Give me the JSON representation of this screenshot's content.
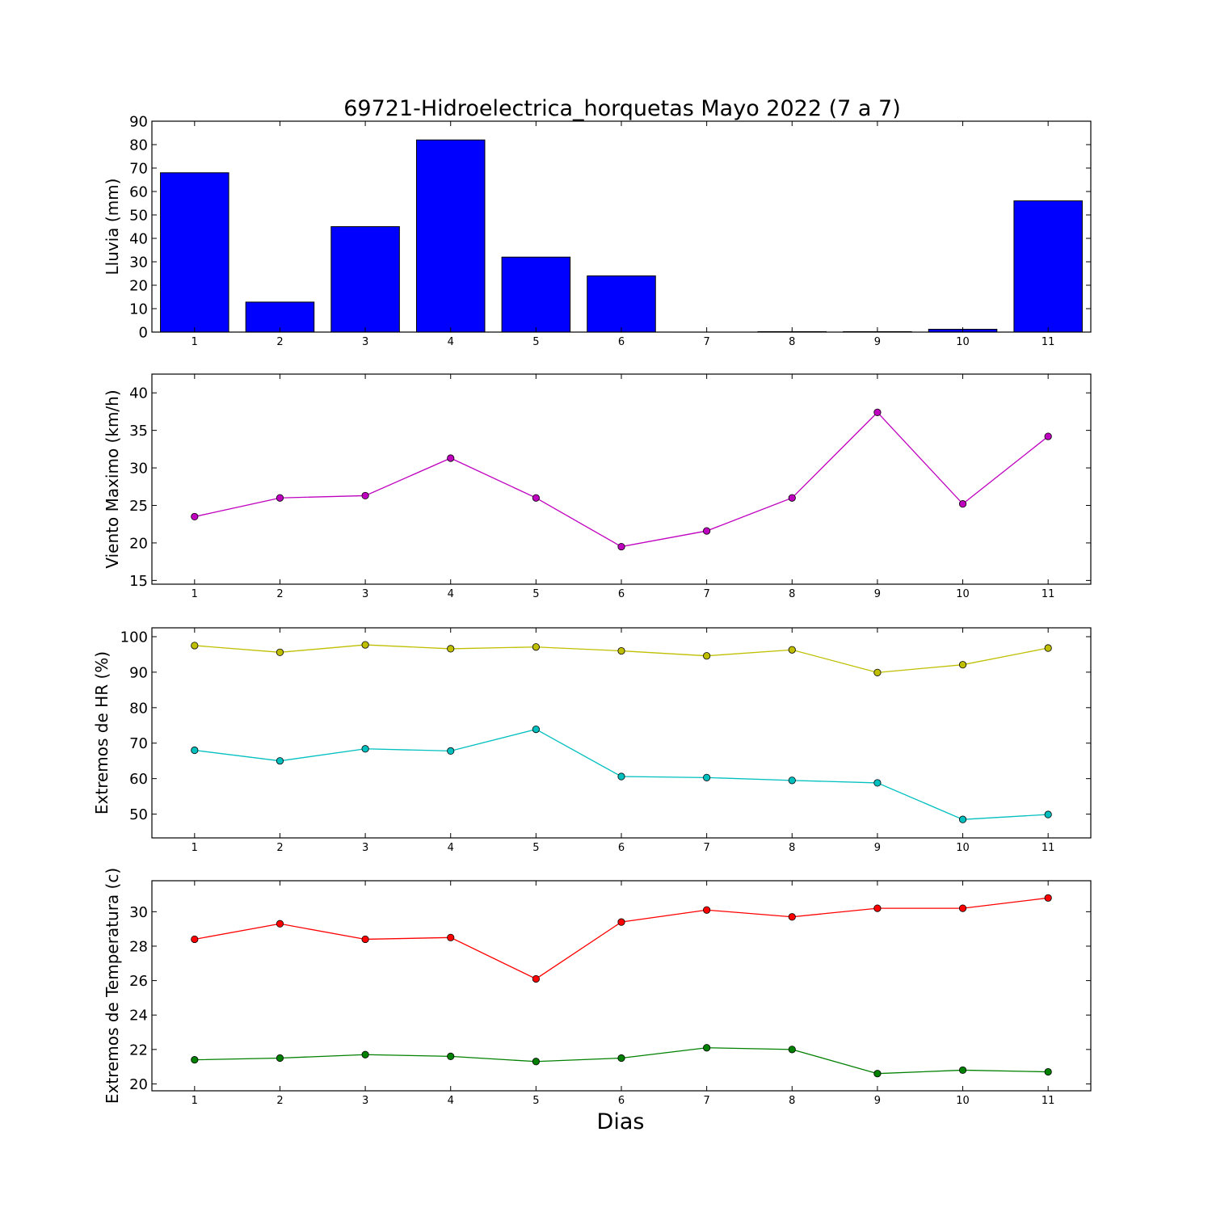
{
  "chart_data": {
    "title": "69721-Hidroelectrica_horquetas Mayo 2022  (7 a 7)",
    "xlabel": "Dias",
    "x": [
      1,
      2,
      3,
      4,
      5,
      6,
      7,
      8,
      9,
      10,
      11
    ],
    "panels": [
      {
        "id": "lluvia",
        "type": "bar",
        "ylabel": "Lluvia (mm)",
        "ylim": [
          0,
          90
        ],
        "yticks": [
          0,
          10,
          20,
          30,
          40,
          50,
          60,
          70,
          80,
          90
        ],
        "series": [
          {
            "color": "#0000ff",
            "values": [
              68,
              12.8,
              45,
              82,
              32,
              24,
              0,
              0.2,
              0.2,
              1.2,
              56
            ]
          }
        ]
      },
      {
        "id": "viento",
        "type": "line",
        "ylabel": "Viento Maximo (km/h)",
        "ylim": [
          14.5,
          42.5
        ],
        "yticks": [
          15,
          20,
          25,
          30,
          35,
          40
        ],
        "series": [
          {
            "color": "#bf00bf",
            "values": [
              23.5,
              26,
              26.3,
              31.3,
              26,
              19.5,
              21.6,
              26,
              37.4,
              25.2,
              34.2
            ]
          }
        ]
      },
      {
        "id": "hr",
        "type": "line",
        "ylabel": "Extremos de HR (%)",
        "ylim": [
          43.3,
          102.5
        ],
        "yticks": [
          50,
          60,
          70,
          80,
          90,
          100
        ],
        "series": [
          {
            "color": "#bfbf00",
            "values": [
              97.5,
              95.6,
              97.7,
              96.6,
              97.1,
              96,
              94.6,
              96.3,
              89.9,
              92.1,
              96.8
            ]
          },
          {
            "color": "#00bfbf",
            "values": [
              68,
              65,
              68.4,
              67.8,
              73.9,
              60.6,
              60.3,
              59.5,
              58.8,
              48.5,
              49.9
            ]
          }
        ]
      },
      {
        "id": "temp",
        "type": "line",
        "ylabel": "Extremos de Temperatura (c)",
        "ylim": [
          19.6,
          31.8
        ],
        "yticks": [
          20,
          22,
          24,
          26,
          28,
          30
        ],
        "series": [
          {
            "color": "#ff0000",
            "values": [
              28.4,
              29.3,
              28.4,
              28.5,
              26.1,
              29.4,
              30.1,
              29.7,
              30.2,
              30.2,
              30.8
            ]
          },
          {
            "color": "#008000",
            "values": [
              21.4,
              21.5,
              21.7,
              21.6,
              21.3,
              21.5,
              22.1,
              22,
              20.6,
              20.8,
              20.7
            ]
          }
        ]
      }
    ]
  }
}
